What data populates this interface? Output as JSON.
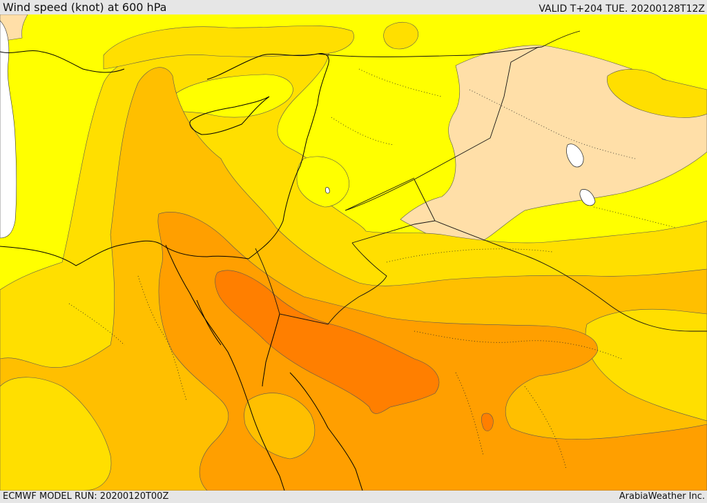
{
  "header": {
    "title": "Wind speed (knot) at 600 hPa",
    "valid": "VALID T+204 TUE. 20200128T12Z"
  },
  "footer": {
    "model_run": "ECMWF MODEL RUN: 20200120T00Z",
    "credit": "ArabiaWeather Inc."
  },
  "colors": {
    "band_lowest": "#ffdfa8",
    "band_low": "#ffff00",
    "band_mid": "#ffdf00",
    "band_midhigh": "#ffbf00",
    "band_high": "#ff9f00",
    "band_highest": "#ff7f00",
    "sea_lake": "#ffffff",
    "coastline": "#000000"
  }
}
